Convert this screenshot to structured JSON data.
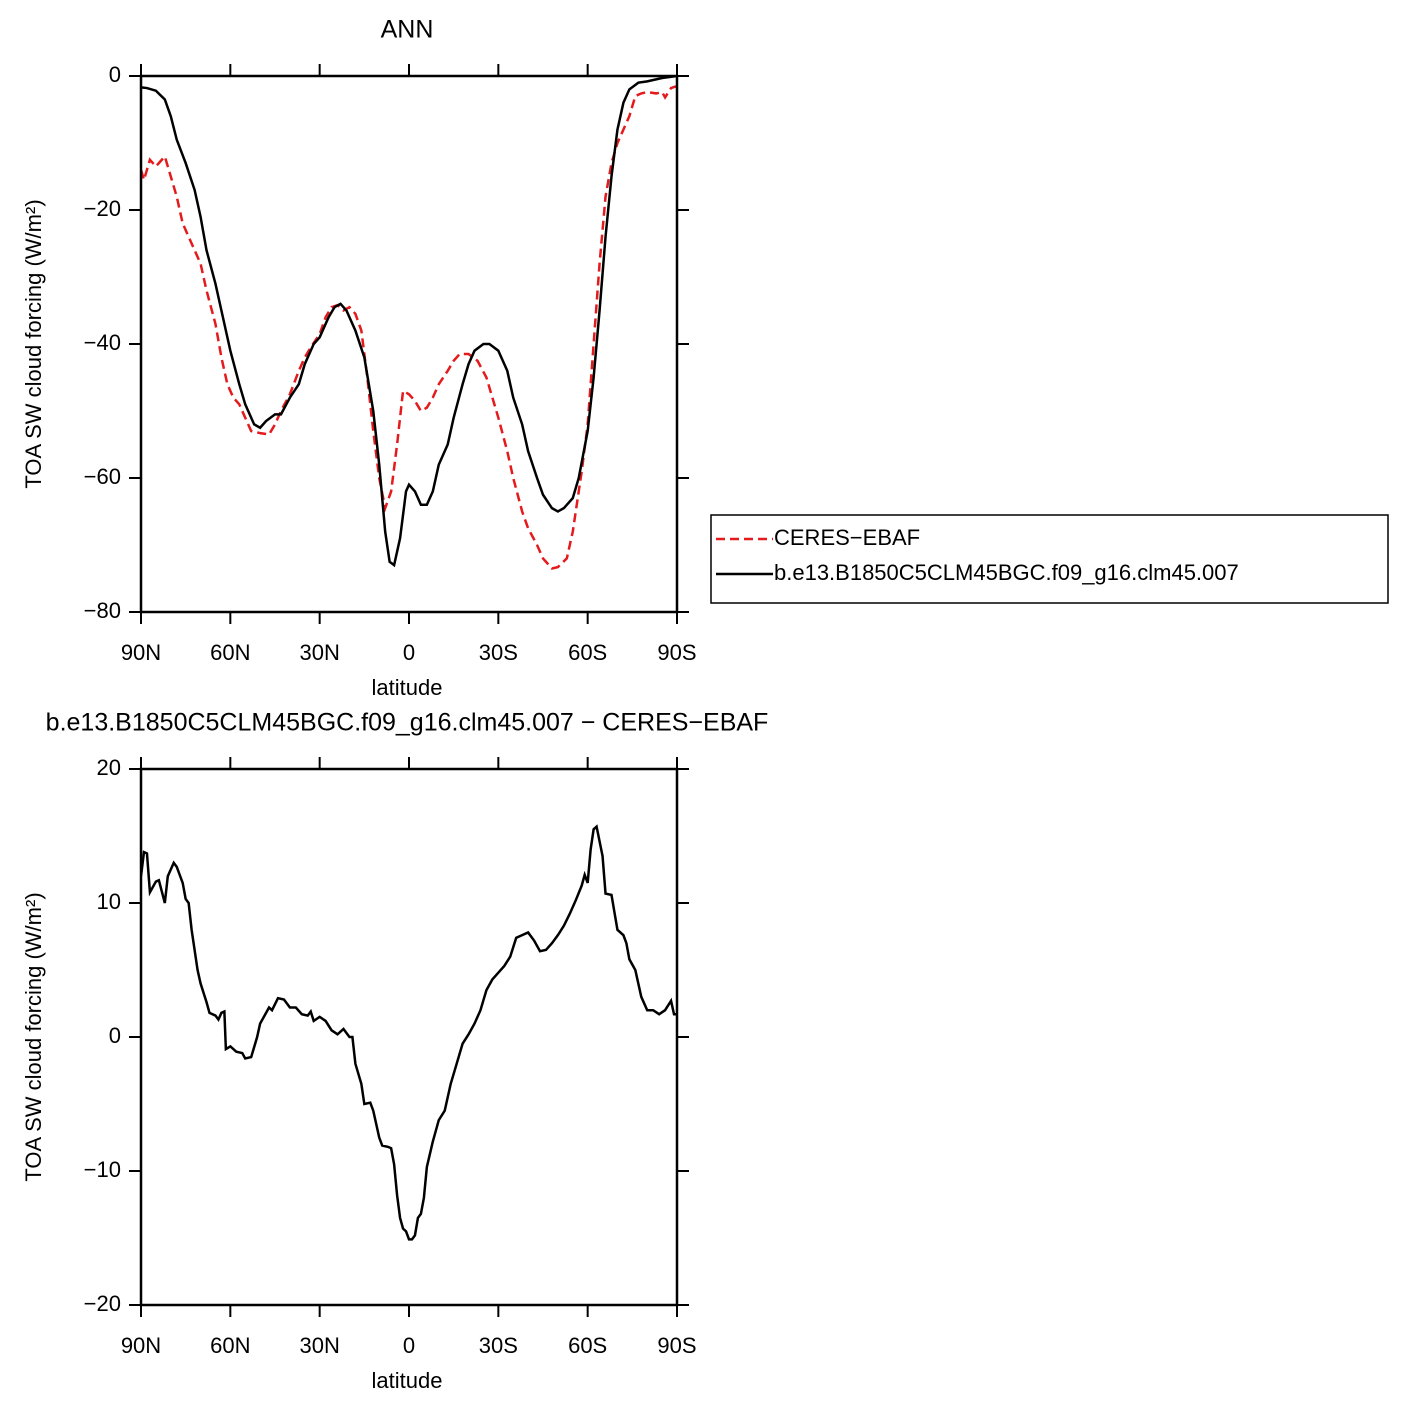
{
  "chart_data": [
    {
      "type": "line",
      "title": "ANN",
      "xlabel": "latitude",
      "ylabel": "TOA SW cloud forcing (W/m²)",
      "xlim": [
        90,
        -90
      ],
      "xticks": [
        {
          "value": 90,
          "label": "90N"
        },
        {
          "value": 60,
          "label": "60N"
        },
        {
          "value": 30,
          "label": "30N"
        },
        0,
        {
          "value": -30,
          "label": "30S"
        },
        {
          "value": -60,
          "label": "60S"
        },
        {
          "value": -90,
          "label": "90S"
        }
      ],
      "ylim": [
        -80,
        0
      ],
      "yticks": [
        0,
        {
          "value": -20,
          "label": "−20"
        },
        {
          "value": -40,
          "label": "−40"
        },
        {
          "value": -60,
          "label": "−60"
        },
        {
          "value": -80,
          "label": "−80"
        }
      ],
      "legend": "right",
      "series": [
        {
          "name": "CERES−EBAF",
          "color": "#e41a1c",
          "linestyle": "dashed",
          "x": [
            90,
            89,
            88,
            87,
            85,
            83,
            82,
            80,
            78,
            76,
            73,
            70,
            68,
            65,
            63,
            61,
            59,
            57,
            55,
            53,
            50,
            47,
            45,
            43,
            40,
            37,
            35,
            33,
            30,
            28,
            26,
            24,
            22,
            20,
            18,
            16,
            14,
            12,
            10,
            8,
            6,
            4,
            2,
            0,
            -2,
            -4,
            -6,
            -8,
            -10,
            -13,
            -15,
            -17,
            -20,
            -23,
            -26,
            -28,
            -30,
            -33,
            -35,
            -38,
            -40,
            -43,
            -45,
            -48,
            -50,
            -53,
            -55,
            -57,
            -58,
            -60,
            -62,
            -64,
            -66,
            -68,
            -70,
            -72,
            -74,
            -76,
            -78,
            -80,
            -83,
            -85,
            -86,
            -88,
            -90
          ],
          "values": [
            -14,
            -15.5,
            -14,
            -12.5,
            -13.5,
            -12.5,
            -12,
            -15,
            -18,
            -22,
            -25,
            -28,
            -32,
            -37,
            -42,
            -46,
            -48,
            -49,
            -51,
            -53,
            -53.3,
            -53.5,
            -52,
            -50,
            -47.5,
            -44,
            -42,
            -40.5,
            -38.5,
            -36,
            -34.5,
            -34.2,
            -35,
            -34.5,
            -35.5,
            -38,
            -45,
            -53,
            -60,
            -64.5,
            -62,
            -55,
            -47,
            -47.5,
            -48.5,
            -50,
            -49.5,
            -48,
            -46,
            -44,
            -42.5,
            -41.5,
            -41.5,
            -42.5,
            -45,
            -48,
            -51,
            -56,
            -60,
            -65,
            -67.5,
            -70,
            -72,
            -73.5,
            -73.3,
            -72,
            -68,
            -62,
            -59,
            -52,
            -40,
            -28,
            -18,
            -13,
            -10,
            -8,
            -6,
            -3,
            -2.6,
            -2.4,
            -2.6,
            -2.4,
            -3.2,
            -1.8,
            -1.5
          ]
        },
        {
          "name": "b.e13.B1850C5CLM45BGC.f09_g16.clm45.007",
          "color": "#000000",
          "linestyle": "solid",
          "x": [
            90,
            88,
            85,
            82,
            80,
            78,
            75,
            72,
            70,
            68,
            65,
            62,
            60,
            57,
            55,
            52,
            50,
            48,
            45,
            43,
            40,
            37,
            35,
            32,
            30,
            27,
            25,
            23,
            21,
            18,
            15,
            12,
            10,
            8,
            6.5,
            5,
            3,
            1,
            0,
            -2,
            -4,
            -6,
            -8,
            -10,
            -13,
            -15,
            -18,
            -20,
            -22,
            -25,
            -27,
            -30,
            -33,
            -35,
            -38,
            -40,
            -43,
            -45,
            -48,
            -50,
            -52,
            -55,
            -57,
            -60,
            -62,
            -64,
            -66,
            -68,
            -70,
            -72,
            -74,
            -77,
            -80,
            -85,
            -90
          ],
          "values": [
            -1.7,
            -1.8,
            -2.2,
            -3.5,
            -6,
            -9.5,
            -13,
            -17,
            -21,
            -26,
            -31,
            -37,
            -41,
            -46,
            -49,
            -52,
            -52.5,
            -51.5,
            -50.5,
            -50.5,
            -48,
            -46,
            -43,
            -40,
            -39,
            -36,
            -34.5,
            -34,
            -35,
            -38,
            -42,
            -50,
            -58,
            -68,
            -72.5,
            -73,
            -69,
            -62,
            -61,
            -62,
            -64,
            -64,
            -62,
            -58,
            -55,
            -51,
            -46,
            -43,
            -41,
            -40,
            -40,
            -41,
            -44,
            -48,
            -52,
            -56,
            -60,
            -62.5,
            -64.5,
            -65,
            -64.5,
            -63,
            -60,
            -53,
            -45,
            -35,
            -24,
            -15,
            -8,
            -4,
            -2,
            -1,
            -0.8,
            -0.3,
            0
          ]
        }
      ]
    },
    {
      "type": "line",
      "title": "b.e13.B1850C5CLM45BGC.f09_g16.clm45.007 − CERES−EBAF",
      "xlabel": "latitude",
      "ylabel": "TOA SW cloud forcing (W/m²)",
      "xlim": [
        90,
        -90
      ],
      "xticks": [
        {
          "value": 90,
          "label": "90N"
        },
        {
          "value": 60,
          "label": "60N"
        },
        {
          "value": 30,
          "label": "30N"
        },
        0,
        {
          "value": -30,
          "label": "30S"
        },
        {
          "value": -60,
          "label": "60S"
        },
        {
          "value": -90,
          "label": "90S"
        }
      ],
      "ylim": [
        -20,
        20
      ],
      "yticks": [
        20,
        10,
        0,
        {
          "value": -10,
          "label": "−10"
        },
        {
          "value": -20,
          "label": "−20"
        }
      ],
      "series": [
        {
          "color": "#000000",
          "linestyle": "solid",
          "x": [
            90,
            89,
            88,
            87,
            85,
            84,
            82,
            81,
            80,
            79,
            78,
            76,
            75,
            74,
            73,
            71,
            70,
            68,
            67,
            65,
            64,
            63,
            62,
            61.5,
            60,
            58,
            56,
            55,
            53,
            51,
            50,
            48,
            47,
            46,
            44,
            42,
            40,
            38,
            36,
            34,
            33,
            32,
            30,
            28,
            26,
            24,
            22,
            20,
            19,
            18,
            16,
            15,
            13,
            12,
            10,
            9,
            7,
            6,
            5,
            4,
            3,
            2,
            1,
            0,
            -1,
            -2,
            -3,
            -4,
            -5,
            -6,
            -8,
            -10,
            -12,
            -14,
            -16,
            -18,
            -20,
            -22,
            -24,
            -26,
            -28,
            -30,
            -32,
            -34,
            -36,
            -38,
            -40,
            -42,
            -44,
            -46,
            -48,
            -50,
            -52,
            -54,
            -56,
            -58,
            -59,
            -60,
            -61,
            -62,
            -63,
            -65,
            -66,
            -68,
            -70,
            -72,
            -73,
            -74,
            -76,
            -78,
            -80,
            -82,
            -84,
            -86,
            -88,
            -89,
            -90
          ],
          "values": [
            12,
            13.8,
            13.7,
            10.8,
            11.6,
            11.7,
            10,
            12,
            12.5,
            13,
            12.7,
            11.5,
            10.3,
            10,
            8,
            5,
            4,
            2.6,
            1.8,
            1.6,
            1.3,
            1.8,
            1.9,
            -0.9,
            -0.7,
            -1.1,
            -1.2,
            -1.6,
            -1.5,
            0,
            1,
            1.8,
            2.2,
            2,
            2.9,
            2.8,
            2.2,
            2.2,
            1.7,
            1.6,
            1.9,
            1.2,
            1.5,
            1.2,
            0.5,
            0.2,
            0.6,
            0,
            0,
            -2,
            -3.5,
            -5,
            -4.9,
            -5.5,
            -7.5,
            -8.1,
            -8.2,
            -8.3,
            -9.5,
            -11.8,
            -13.5,
            -14.3,
            -14.5,
            -15.1,
            -15.1,
            -14.8,
            -13.5,
            -13.2,
            -12,
            -9.7,
            -7.8,
            -6.2,
            -5.5,
            -3.5,
            -2,
            -0.5,
            0.2,
            1,
            2,
            3.5,
            4.3,
            4.8,
            5.3,
            6,
            7.4,
            7.6,
            7.8,
            7.2,
            6.4,
            6.5,
            7,
            7.6,
            8.3,
            9.2,
            10.2,
            11.3,
            12.1,
            11.5,
            14,
            15.5,
            15.7,
            13.5,
            10.7,
            10.6,
            8,
            7.6,
            7,
            5.8,
            5,
            3,
            2,
            2,
            1.7,
            2,
            2.7,
            1.7,
            1.7
          ]
        }
      ]
    }
  ]
}
